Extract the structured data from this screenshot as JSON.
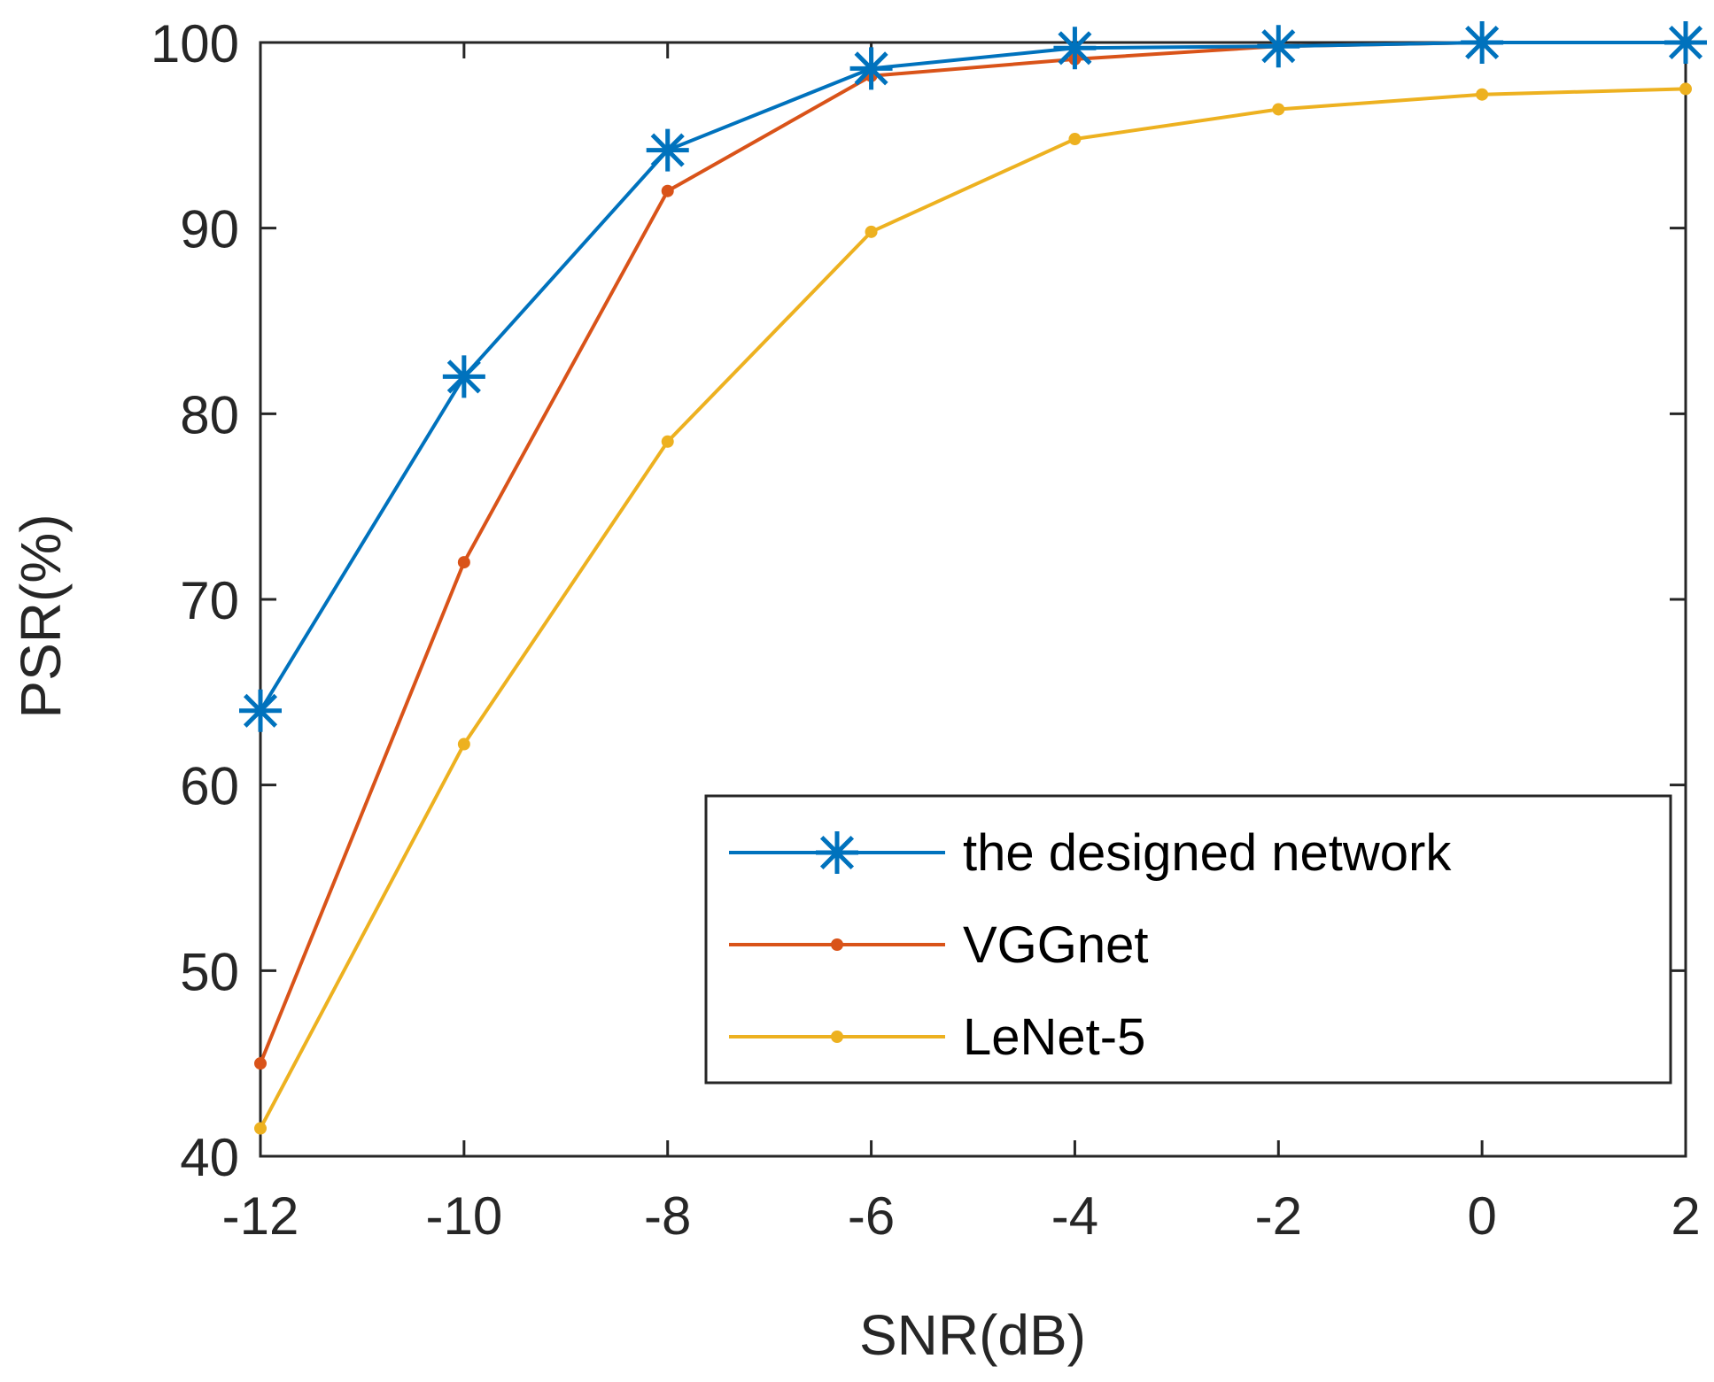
{
  "chart_data": {
    "type": "line",
    "title": "",
    "xlabel": "SNR(dB)",
    "ylabel": "PSR(%)",
    "xlim": [
      -12,
      2
    ],
    "ylim": [
      40,
      100
    ],
    "xticks": [
      -12,
      -10,
      -8,
      -6,
      -4,
      -2,
      0,
      2
    ],
    "xtick_labels": [
      "-12",
      "-10",
      "-8",
      "-6",
      "-4",
      "-2",
      "0",
      "2"
    ],
    "yticks": [
      40,
      50,
      60,
      70,
      80,
      90,
      100
    ],
    "ytick_labels": [
      "40",
      "50",
      "60",
      "70",
      "80",
      "90",
      "100"
    ],
    "x": [
      -12,
      -10,
      -8,
      -6,
      -4,
      -2,
      0,
      2
    ],
    "grid": false,
    "legend_position": "bottom-right",
    "series": [
      {
        "name": "the designed network",
        "values": [
          64,
          82,
          94.2,
          98.6,
          99.7,
          99.8,
          100,
          100
        ],
        "color": "#0072BD",
        "marker": "asterisk"
      },
      {
        "name": "VGGnet",
        "values": [
          45,
          72,
          92,
          98.2,
          99.1,
          99.8,
          100,
          100
        ],
        "color": "#D95319",
        "marker": "dot"
      },
      {
        "name": "LeNet-5",
        "values": [
          41.5,
          62.2,
          78.5,
          89.8,
          94.8,
          96.4,
          97.2,
          97.5
        ],
        "color": "#EDB120",
        "marker": "dot"
      }
    ]
  }
}
